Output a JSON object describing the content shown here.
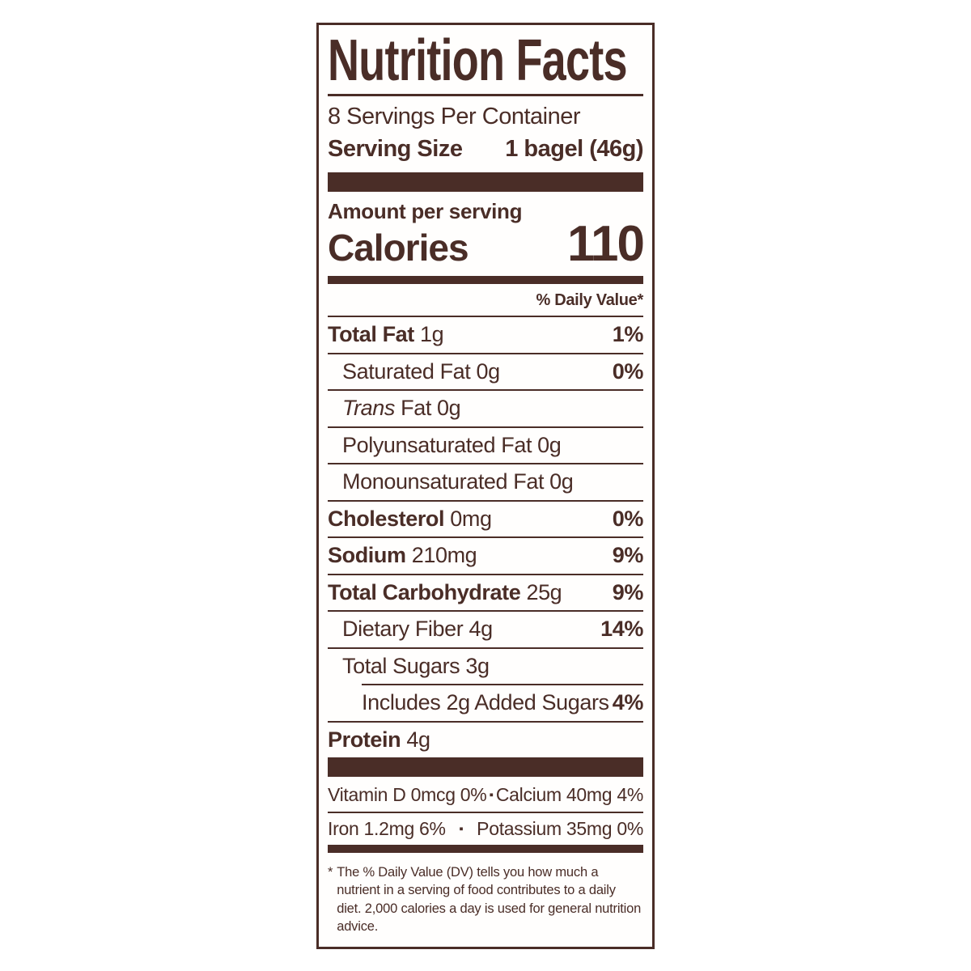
{
  "colors": {
    "label_brown": "#4a2d27",
    "background": "#ffffff"
  },
  "label": {
    "title": "Nutrition Facts",
    "servings_per_container": "8 Servings Per Container",
    "serving_size_label": "Serving Size",
    "serving_size_value": "1 bagel (46g)",
    "amount_per_serving": "Amount per serving",
    "calories_label": "Calories",
    "calories_value": "110",
    "daily_value_header": "% Daily Value*",
    "rows": [
      {
        "name": "Total Fat",
        "amount": "1g",
        "dv": "1%"
      },
      {
        "name": "Saturated Fat",
        "amount": "0g",
        "dv": "0%"
      },
      {
        "name": "Trans",
        "name_rest": "Fat",
        "amount": "0g",
        "dv": ""
      },
      {
        "name": "Polyunsaturated Fat",
        "amount": "0g",
        "dv": ""
      },
      {
        "name": "Monounsaturated Fat",
        "amount": "0g",
        "dv": ""
      },
      {
        "name": "Cholesterol",
        "amount": "0mg",
        "dv": "0%"
      },
      {
        "name": "Sodium",
        "amount": "210mg",
        "dv": "9%"
      },
      {
        "name": "Total Carbohydrate",
        "amount": "25g",
        "dv": "9%"
      },
      {
        "name": "Dietary Fiber",
        "amount": "4g",
        "dv": "14%"
      },
      {
        "name": "Total Sugars",
        "amount": "3g",
        "dv": ""
      },
      {
        "name": "Includes 2g Added Sugars",
        "amount": "",
        "dv": "4%"
      },
      {
        "name": "Protein",
        "amount": "4g",
        "dv": ""
      }
    ],
    "micronutrients": [
      {
        "left": "Vitamin D 0mcg 0%",
        "right": "Calcium 40mg 4%",
        "bullet": "▪"
      },
      {
        "left": "Iron 1.2mg 6%",
        "right": "Potassium 35mg 0%",
        "bullet": "▪"
      }
    ],
    "footnote_star": "*",
    "footnote": "The % Daily Value (DV) tells you how much a nutrient in a serving of food contributes to a daily diet. 2,000 calories a day is used for general nutrition advice."
  }
}
